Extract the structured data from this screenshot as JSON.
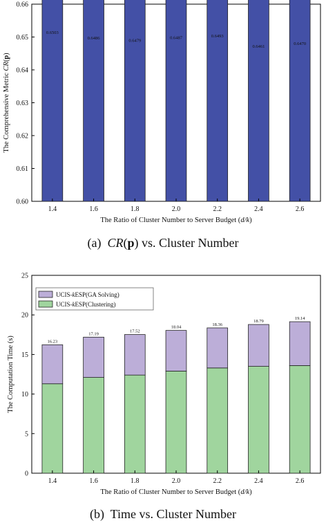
{
  "chart_data": [
    {
      "type": "bar",
      "caption": {
        "prefix": "(a)",
        "metric": "CR",
        "arg": "p",
        "rest": "vs. Cluster Number"
      },
      "categories": [
        "1.4",
        "1.6",
        "1.8",
        "2.0",
        "2.2",
        "2.4",
        "2.6"
      ],
      "series": [
        {
          "values": [
            0.6503,
            0.6486,
            0.6479,
            0.6487,
            0.6493,
            0.6461,
            0.647
          ]
        }
      ],
      "value_labels": [
        "0.6503",
        "0.6486",
        "0.6479",
        "0.6487",
        "0.6493",
        "0.6461",
        "0.6470"
      ],
      "xlabel": {
        "text": "The Ratio of Cluster Number to Server Budget (",
        "var": "d/k",
        "close": ")"
      },
      "ylabel": {
        "text": "The Comprehensive Metric ",
        "metric": "CR",
        "arg": "p"
      },
      "ylim": [
        0.6,
        0.66
      ],
      "yticks": [
        "0.60",
        "0.61",
        "0.62",
        "0.63",
        "0.64",
        "0.65",
        "0.66"
      ],
      "bar_color": "#4350a6",
      "grid": false
    },
    {
      "type": "bar",
      "stacked": true,
      "caption": {
        "prefix": "(b)",
        "text": "Time vs. Cluster Number"
      },
      "categories": [
        "1.4",
        "1.6",
        "1.8",
        "2.0",
        "2.2",
        "2.4",
        "2.6"
      ],
      "series": [
        {
          "name": "UCIS-kESP(Clustering)",
          "name_parts": [
            "UCIS-",
            "k",
            "ESP(Clustering)"
          ],
          "color": "#a0d59e",
          "values": [
            11.3,
            12.1,
            12.4,
            12.9,
            13.3,
            13.5,
            13.6
          ]
        },
        {
          "name": "UCIS-kESP(GA Solving)",
          "name_parts": [
            "UCIS-",
            "k",
            "ESP(GA Solving)"
          ],
          "color": "#bcaed8",
          "values": [
            4.93,
            5.09,
            5.12,
            5.14,
            5.06,
            5.29,
            5.54
          ]
        }
      ],
      "total_labels": [
        "16.23",
        "17.19",
        "17.52",
        "18.04",
        "18.36",
        "18.79",
        "19.14"
      ],
      "xlabel": {
        "text": "The Ratio of Cluster Number to Server Budget (",
        "var": "d/k",
        "close": ")"
      },
      "ylabel": {
        "text": "The Computation Time (s)"
      },
      "ylim": [
        0,
        25
      ],
      "yticks": [
        "0",
        "5",
        "10",
        "15",
        "20",
        "25"
      ],
      "legend_position": "top-left",
      "grid": false
    }
  ]
}
